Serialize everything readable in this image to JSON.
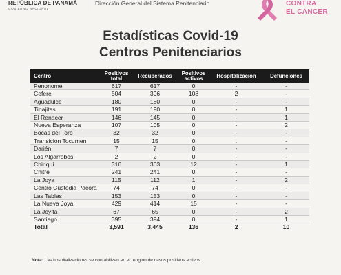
{
  "header": {
    "gov_line1": "REPÚBLICA DE PANAMÁ",
    "gov_line2": "GOBIERNO NACIONAL",
    "department": "Dirección General del Sistema Penitenciario",
    "campaign_line1": "CONTRA",
    "campaign_line2": "EL CÁNCER",
    "ribbon_color": "#e27db0"
  },
  "title": {
    "line1": "Estadísticas Covid-19",
    "line2": "Centros Penitenciarios"
  },
  "table": {
    "headers": [
      "Centro",
      "Positivos total",
      "Recuperados",
      "Positivos activos",
      "Hospitalización",
      "Defunciones"
    ],
    "rows": [
      [
        "Penonomé",
        "617",
        "617",
        "0",
        "-",
        "-"
      ],
      [
        "Cefere",
        "504",
        "396",
        "108",
        "2",
        "-"
      ],
      [
        "Aguadulce",
        "180",
        "180",
        "0",
        "-",
        "-"
      ],
      [
        "Tinajitas",
        "191",
        "190",
        "0",
        "-",
        "1"
      ],
      [
        "El Renacer",
        "146",
        "145",
        "0",
        "-",
        "1"
      ],
      [
        "Nueva Esperanza",
        "107",
        "105",
        "0",
        "-",
        "2"
      ],
      [
        "Bocas del Toro",
        "32",
        "32",
        "0",
        "-",
        "-"
      ],
      [
        "Transición Tocumen",
        "15",
        "15",
        "0",
        ".",
        "-"
      ],
      [
        "Darién",
        "7",
        "7",
        "0",
        "-",
        "-"
      ],
      [
        "Los Algarrobos",
        "2",
        "2",
        "0",
        "-",
        "-"
      ],
      [
        "Chiriquí",
        "316",
        "303",
        "12",
        "-",
        "1"
      ],
      [
        "Chitré",
        "241",
        "241",
        "0",
        "-",
        "-"
      ],
      [
        "La Joya",
        "115",
        "112",
        "1",
        "-",
        "2"
      ],
      [
        "Centro Custodia Pacora",
        "74",
        "74",
        "0",
        "-",
        "-"
      ],
      [
        "Las Tablas",
        "153",
        "153",
        "0",
        "-",
        "-"
      ],
      [
        "La Nueva Joya",
        "429",
        "414",
        "15",
        "-",
        "-"
      ],
      [
        "La Joyita",
        "67",
        "65",
        "0",
        "-",
        "2"
      ],
      [
        "Santiago",
        "395",
        "394",
        "0",
        "-",
        "1"
      ]
    ],
    "total": [
      "Total",
      "3,591",
      "3,445",
      "136",
      "2",
      "10"
    ]
  },
  "note": {
    "label": "Nota:",
    "text": "Las hospitalizaciones se contabilizan en el renglón de casos positivos activos."
  }
}
